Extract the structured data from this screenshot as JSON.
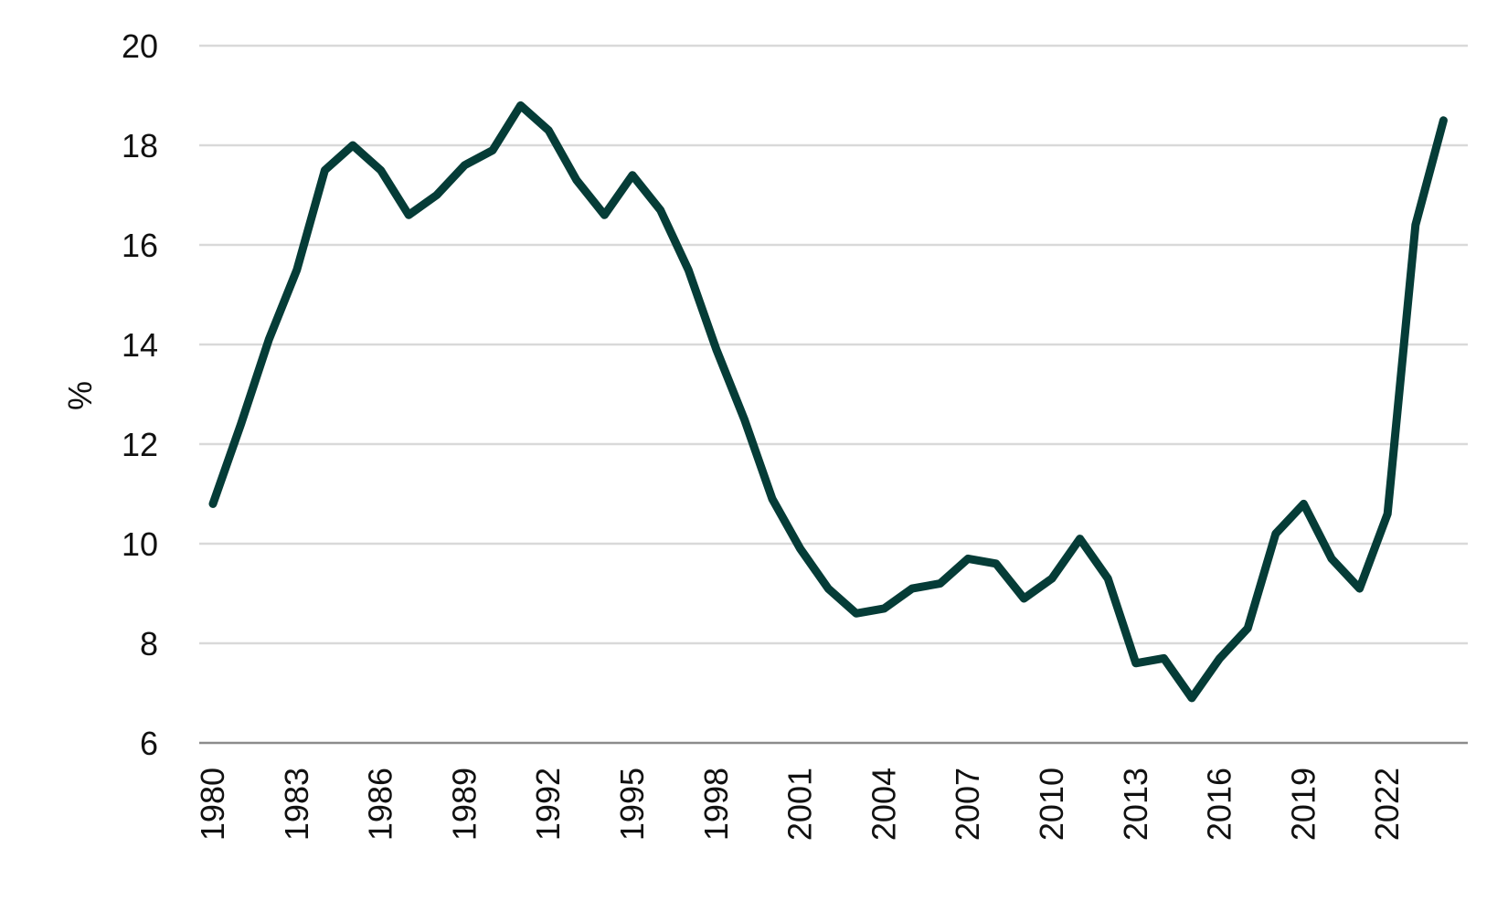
{
  "chart_data": {
    "type": "line",
    "title": "",
    "xlabel": "",
    "ylabel": "%",
    "ylim": [
      6,
      20
    ],
    "yticks": [
      "6",
      "8",
      "10",
      "12",
      "14",
      "16",
      "18",
      "20"
    ],
    "xticks": [
      "1980",
      "1983",
      "1986",
      "1989",
      "1992",
      "1995",
      "1998",
      "2001",
      "2004",
      "2007",
      "2010",
      "2013",
      "2016",
      "2019",
      "2022"
    ],
    "grid": true,
    "legend": "none",
    "colors": {
      "series": "#053c37",
      "grid": "#d9d9d9",
      "axis": "#8c8c8c"
    },
    "x": [
      1980,
      1981,
      1982,
      1983,
      1984,
      1985,
      1986,
      1987,
      1988,
      1989,
      1990,
      1991,
      1992,
      1993,
      1994,
      1995,
      1996,
      1997,
      1998,
      1999,
      2000,
      2001,
      2002,
      2003,
      2004,
      2005,
      2006,
      2007,
      2008,
      2009,
      2010,
      2011,
      2012,
      2013,
      2014,
      2015,
      2016,
      2017,
      2018,
      2019,
      2020,
      2021,
      2022,
      2023,
      2024
    ],
    "series": [
      {
        "name": "",
        "values": [
          10.8,
          12.4,
          14.1,
          15.5,
          17.5,
          18.0,
          17.5,
          16.6,
          17.0,
          17.6,
          17.9,
          18.8,
          18.3,
          17.3,
          16.6,
          17.4,
          16.7,
          15.5,
          13.9,
          12.5,
          10.9,
          9.9,
          9.1,
          8.6,
          8.7,
          9.1,
          9.2,
          9.7,
          9.6,
          8.9,
          9.3,
          10.1,
          9.3,
          7.6,
          7.7,
          6.9,
          7.7,
          8.3,
          10.2,
          10.8,
          9.7,
          9.1,
          10.6,
          16.4,
          18.5
        ]
      }
    ]
  }
}
